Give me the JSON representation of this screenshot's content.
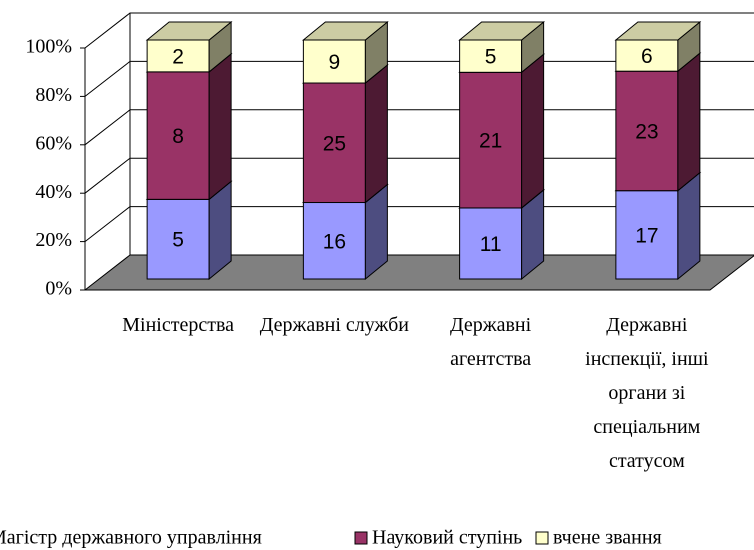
{
  "chart_data": {
    "type": "bar3d_stacked_percent",
    "categories": [
      "Міністерства",
      "Державні служби",
      "Державні агентства",
      "Державні інспекції, інші органи зі спеціальним статусом"
    ],
    "series": [
      {
        "name": "Магістр державного управління",
        "color": "#9999ff",
        "values": [
          5,
          16,
          11,
          17
        ]
      },
      {
        "name": "Науковий ступінь",
        "color": "#993366",
        "values": [
          8,
          25,
          21,
          23
        ]
      },
      {
        "name": "вчене звання",
        "color": "#ffffcc",
        "values": [
          2,
          9,
          5,
          6
        ]
      }
    ],
    "ylim": [
      0,
      100
    ],
    "yticks": [
      {
        "value": 0,
        "label": "0%"
      },
      {
        "value": 20,
        "label": "20%"
      },
      {
        "value": 40,
        "label": "40%"
      },
      {
        "value": 60,
        "label": "60%"
      },
      {
        "value": 80,
        "label": "80%"
      },
      {
        "value": 100,
        "label": "100%"
      }
    ],
    "grid": true,
    "legend": "bottom"
  }
}
